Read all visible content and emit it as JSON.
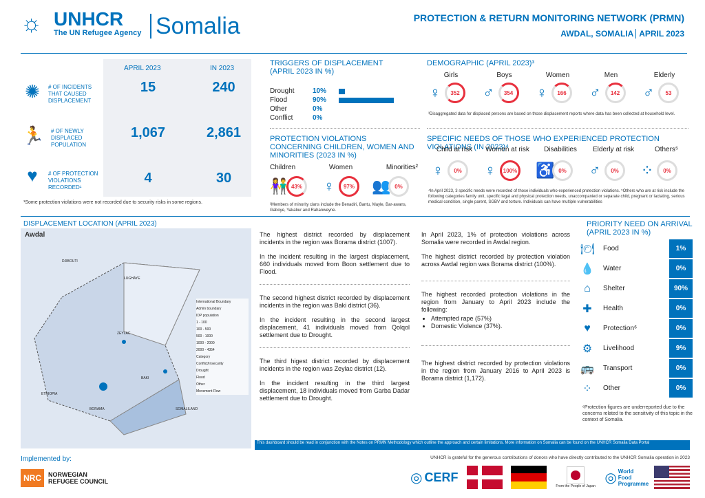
{
  "header": {
    "org": "UNHCR",
    "tagline": "The UN Refugee Agency",
    "country": "Somalia",
    "network": "PROTECTION & RETURN MONITORING NETWORK (PRMN)",
    "region": "AWDAL, SOMALIA",
    "period": "APRIL 2023"
  },
  "kpi": {
    "col1": "APRIL 2023",
    "col2": "IN 2023",
    "rows": [
      {
        "label": "# OF INCIDENTS THAT CAUSED DISPLACEMENT",
        "v1": "15",
        "v2": "240",
        "icon": "spark-icon"
      },
      {
        "label": "# OF NEWLY DISPLACED POPULATION",
        "v1": "1,067",
        "v2": "2,861",
        "icon": "running-person-icon"
      },
      {
        "label": "# OF PROTECTION VIOLATIONS RECORDED¹",
        "v1": "4",
        "v2": "30",
        "icon": "protection-hands-icon"
      }
    ],
    "footnote": "¹Some protection violations were not recorded due to security risks in some regions."
  },
  "triggers": {
    "title": "TRIGGERS OF DISPLACEMENT (APRIL 2023 IN %)",
    "items": [
      {
        "label": "Drought",
        "pct": "10%",
        "value": 10
      },
      {
        "label": "Flood",
        "pct": "90%",
        "value": 90
      },
      {
        "label": "Other",
        "pct": "0%",
        "value": 0
      },
      {
        "label": "Conflict",
        "pct": "0%",
        "value": 0
      }
    ]
  },
  "demographic": {
    "title": "DEMOGRAPHIC (APRIL 2023)³",
    "groups": [
      {
        "label": "Girls",
        "value": "352"
      },
      {
        "label": "Boys",
        "value": "354"
      },
      {
        "label": "Women",
        "value": "166"
      },
      {
        "label": "Men",
        "value": "142"
      },
      {
        "label": "Elderly",
        "value": "53"
      }
    ],
    "note": "³Disaggregated data for displaced persons are based on those displacement reports where data has been collected at household level."
  },
  "violations": {
    "title": "PROTECTION VIOLATIONS CONCERNING CHILDREN, WOMEN AND MINORITIES (2023 IN %)",
    "items": [
      {
        "label": "Children",
        "pct": "43%"
      },
      {
        "label": "Women",
        "pct": "97%"
      },
      {
        "label": "Minorities²",
        "pct": "0%"
      }
    ],
    "note": "²Members of minority clans include the Benadiri, Bantu, Mayle, Bar-awans, Gaboye, Yakabur and Rahanweyne."
  },
  "needs": {
    "title": "SPECIFIC NEEDS OF THOSE WHO EXPERIENCED PROTECTION VIOLATIONS (IN 2023)⁴",
    "items": [
      {
        "label": "Child at risk",
        "pct": "0%"
      },
      {
        "label": "Women at risk",
        "pct": "100%"
      },
      {
        "label": "Disabilities",
        "pct": "0%"
      },
      {
        "label": "Elderly at risk",
        "pct": "0%"
      },
      {
        "label": "Others⁵",
        "pct": "0%"
      }
    ],
    "note": "⁴In April 2023, 3 specific needs were recorded of those individuals who experienced protection violations. ⁵Others who are at risk include the following categories family unit, specific legal and physical protection needs, unaccompanied or separate child, pregnant or lactating, serious medical condition, single parent, SGBV and torture. Individuals can have multiple vulnerabilities"
  },
  "map": {
    "title": "DISPLACEMENT LOCATION (APRIL 2023)",
    "region": "Awdal",
    "labels": [
      "DJIBOUTI",
      "ETHIOPIA",
      "LUGHAYE",
      "BAKI",
      "BORAMA",
      "ZEYLAC",
      "SOMALILAND"
    ],
    "legend": [
      "International Boundary",
      "Admin boundary",
      "IDP population",
      "1 - 100",
      "100 - 500",
      "500 - 1000",
      "1000 - 2000",
      "2000 - 4354",
      "Category",
      "Conflict/Insecurity",
      "Drought",
      "Flood",
      "Other",
      "Movement Flow"
    ]
  },
  "col1": [
    {
      "p1": "The highest district recorded by displacement incidents in the region was Borama district (1007).",
      "p2": "In the incident resulting in the largest displacement, 660 individuals moved from Boon settlement due to Flood."
    },
    {
      "p1": "The second highest district recorded by displacement incidents in the region was Baki district (36).",
      "p2": "In the incident resulting in the second largest displacement, 41 individuals moved from Qolqol settlement due to Drought."
    },
    {
      "p1": "The third higest district recorded by displacement incidents in the region was Zeylac district (12).",
      "p2": "In the incident resulting in the third largest displacement, 18 individuals moved from Garba Dadar settlement due to Drought."
    }
  ],
  "col2": {
    "a": "In April 2023, 1% of protection violations across Somalia were recorded in Awdal region.",
    "b": "The highest district recorded by protection violation across Awdal region was Borama district (100%).",
    "c": "The highest recorded protection violations in the region from January to April 2023 include the following:",
    "bullets": [
      "Attempted rape (57%)",
      "Domestic Violence (37%)."
    ],
    "d": "The highest district recorded by protection violations in the region from January 2016 to April 2023 is Borama district (1,172)."
  },
  "priority": {
    "title": "PRIORITY NEED ON ARRIVAL (APRIL 2023 IN %)",
    "items": [
      {
        "label": "Food",
        "value": "1%"
      },
      {
        "label": "Water",
        "value": "0%"
      },
      {
        "label": "Shelter",
        "value": "90%"
      },
      {
        "label": "Health",
        "value": "0%"
      },
      {
        "label": "Protection⁶",
        "value": "0%"
      },
      {
        "label": "Livelihood",
        "value": "9%"
      },
      {
        "label": "Transport",
        "value": "0%"
      },
      {
        "label": "Other",
        "value": "0%"
      }
    ],
    "note": "⁶Protection figures are underreported due to the concerns related to the sensitivity of this topic in the context of Somalia."
  },
  "footer": {
    "disclaimer": "This dashboard should be read in conjunction with the Notes on PRMN Methodology which outline the approach and certain limitations. More information on Somalia can be found on the UNHCR Somalia Data Portal",
    "implemented": "Implemented by:",
    "nrc": "NORWEGIAN REFUGEE COUNCIL",
    "thanks": "UNHCR is grateful for the generous contributions of donors who have directly contributed to the UNHCR Somalia operation in 2023",
    "cerf": "CERF",
    "japan": "From the People of Japan",
    "wfp": "World Food Programme"
  }
}
